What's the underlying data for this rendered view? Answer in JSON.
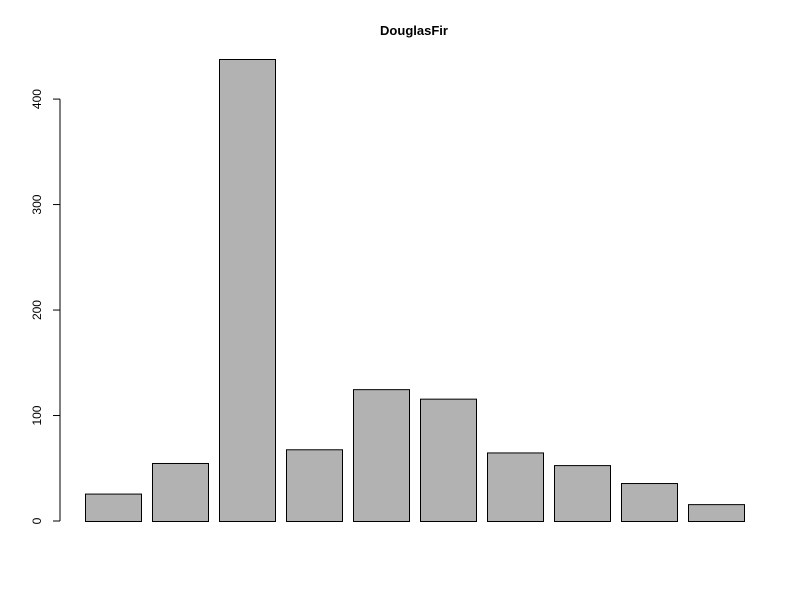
{
  "chart_data": {
    "type": "bar",
    "title": "DouglasFir",
    "xlabel": "",
    "ylabel": "",
    "categories": [
      "",
      "",
      "",
      "",
      "",
      "",
      "",
      "",
      "",
      ""
    ],
    "values": [
      26,
      55,
      438,
      68,
      125,
      116,
      65,
      53,
      36,
      16
    ],
    "ylim": [
      0,
      438
    ],
    "yticks": [
      0,
      100,
      200,
      300,
      400
    ],
    "ytick_labels": [
      "0",
      "100",
      "200",
      "300",
      "400"
    ],
    "grid": false,
    "legend": "none",
    "colors": {
      "bar_fill": "#b2b2b2",
      "bar_stroke": "#000000",
      "axis": "#000000",
      "background": "#ffffff"
    }
  }
}
